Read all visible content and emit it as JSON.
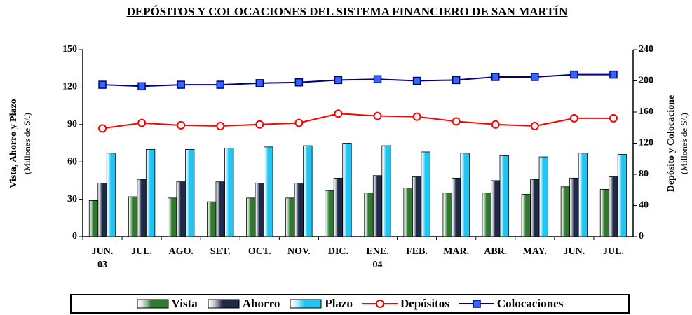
{
  "chart_data": {
    "type": "bar",
    "title": "DEPÓSITOS Y COLOCACIONES DEL SISTEMA FINANCIERO DE SAN MARTÍN",
    "ylabel": "Vista, Ahorro y Plazo",
    "ylabel_sub": "(Millones de S/.)",
    "y2label": "Depósito y Colocacione",
    "y2label_sub": "(Millones de S/.)",
    "categories": [
      "JUN. 03",
      "JUL.",
      "AGO.",
      "SET.",
      "OCT.",
      "NOV.",
      "DIC.",
      "ENE. 04",
      "FEB.",
      "MAR.",
      "ABR.",
      "MAY.",
      "JUN.",
      "JUL."
    ],
    "ylim": [
      0,
      150
    ],
    "yticks": [
      0,
      30,
      60,
      90,
      120,
      150
    ],
    "y2lim": [
      0,
      240
    ],
    "y2ticks": [
      0,
      40,
      80,
      120,
      160,
      200,
      240
    ],
    "grid": false,
    "legend": "bottom",
    "series": [
      {
        "name": "Vista",
        "type": "bar",
        "color": "#2f7a2f",
        "values": [
          29,
          32,
          31,
          28,
          31,
          31,
          37,
          35,
          39,
          35,
          35,
          34,
          40,
          38
        ]
      },
      {
        "name": "Ahorro",
        "type": "bar",
        "color": "#1e2a48",
        "values": [
          43,
          46,
          44,
          44,
          43,
          43,
          47,
          49,
          48,
          47,
          45,
          46,
          47,
          48
        ]
      },
      {
        "name": "Plazo",
        "type": "bar",
        "color": "#22c4f2",
        "values": [
          67,
          70,
          70,
          71,
          72,
          73,
          75,
          73,
          68,
          67,
          65,
          64,
          67,
          66
        ]
      },
      {
        "name": "Depósitos",
        "type": "line",
        "axis": "y2",
        "color": "#ff0000",
        "marker": "circle",
        "marker_color": "#ffffff",
        "values": [
          139,
          146,
          143,
          142,
          144,
          146,
          158,
          155,
          154,
          148,
          144,
          142,
          152,
          152
        ]
      },
      {
        "name": "Colocaciones",
        "type": "line",
        "axis": "y2",
        "color": "#000080",
        "marker": "square",
        "marker_color": "#3366ff",
        "values": [
          195,
          193,
          195,
          195,
          197,
          198,
          201,
          202,
          200,
          201,
          205,
          205,
          208,
          208
        ]
      }
    ]
  }
}
